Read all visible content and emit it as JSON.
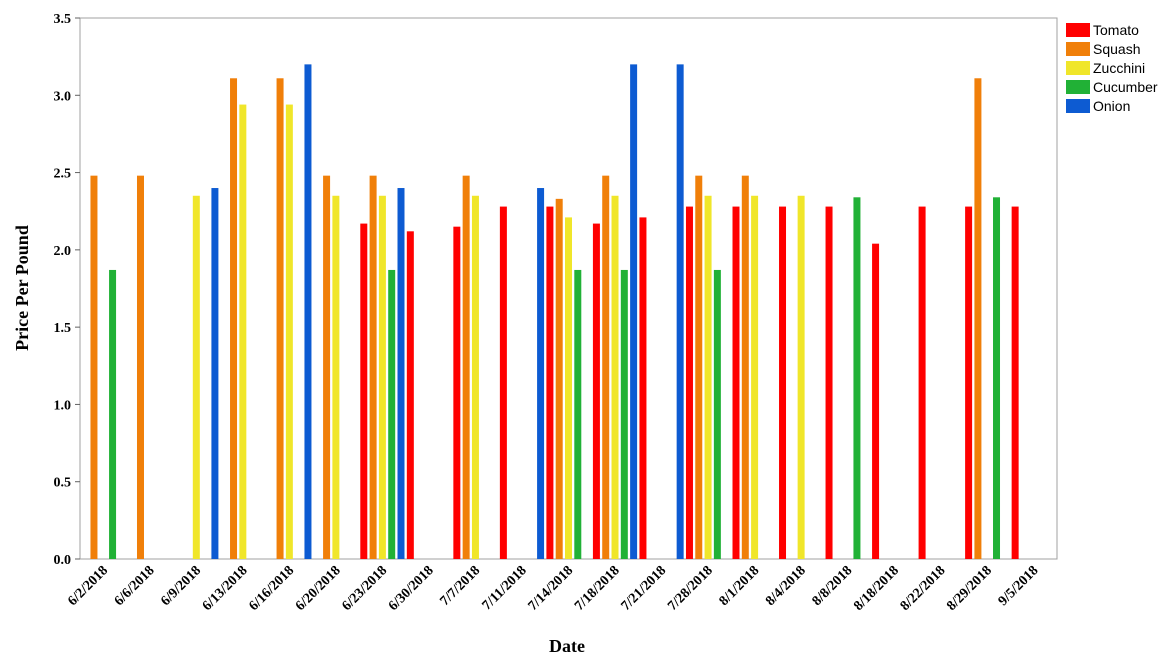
{
  "chart_data": {
    "type": "bar",
    "xlabel": "Date",
    "ylabel": "Price Per Pound",
    "ylim": [
      0,
      3.5
    ],
    "yticks": [
      "0.0",
      "0.5",
      "1.0",
      "1.5",
      "2.0",
      "2.5",
      "3.0",
      "3.5"
    ],
    "grid": false,
    "legend_position": "top-right",
    "categories": [
      "6/2/2018",
      "6/6/2018",
      "6/9/2018",
      "6/13/2018",
      "6/16/2018",
      "6/20/2018",
      "6/23/2018",
      "6/30/2018",
      "7/7/2018",
      "7/11/2018",
      "7/14/2018",
      "7/18/2018",
      "7/21/2018",
      "7/28/2018",
      "8/1/2018",
      "8/4/2018",
      "8/8/2018",
      "8/18/2018",
      "8/22/2018",
      "8/29/2018",
      "9/5/2018"
    ],
    "series": [
      {
        "name": "Tomato",
        "color": "#ff0000",
        "values": [
          null,
          null,
          null,
          null,
          null,
          null,
          2.17,
          2.12,
          2.15,
          2.28,
          2.28,
          2.17,
          2.21,
          2.28,
          2.28,
          2.28,
          2.28,
          2.04,
          2.28,
          2.28,
          2.28
        ]
      },
      {
        "name": "Squash",
        "color": "#f07f09",
        "values": [
          2.48,
          2.48,
          null,
          3.11,
          3.11,
          2.48,
          2.48,
          null,
          2.48,
          null,
          2.33,
          2.48,
          null,
          2.48,
          2.48,
          null,
          null,
          null,
          null,
          3.11,
          null
        ]
      },
      {
        "name": "Zucchini",
        "color": "#f0e62a",
        "values": [
          null,
          null,
          2.35,
          2.94,
          2.94,
          2.35,
          2.35,
          null,
          2.35,
          null,
          2.21,
          2.35,
          null,
          2.35,
          2.35,
          2.35,
          null,
          null,
          null,
          null,
          null
        ]
      },
      {
        "name": "Cucumber",
        "color": "#21b136",
        "values": [
          1.87,
          null,
          null,
          null,
          null,
          null,
          1.87,
          null,
          null,
          null,
          1.87,
          1.87,
          null,
          1.87,
          null,
          null,
          2.34,
          null,
          null,
          2.34,
          null
        ]
      },
      {
        "name": "Onion",
        "color": "#0d5bd2",
        "values": [
          null,
          null,
          2.4,
          null,
          3.2,
          null,
          2.4,
          null,
          null,
          2.4,
          null,
          3.2,
          3.2,
          null,
          null,
          null,
          null,
          null,
          null,
          null,
          null
        ]
      }
    ]
  }
}
